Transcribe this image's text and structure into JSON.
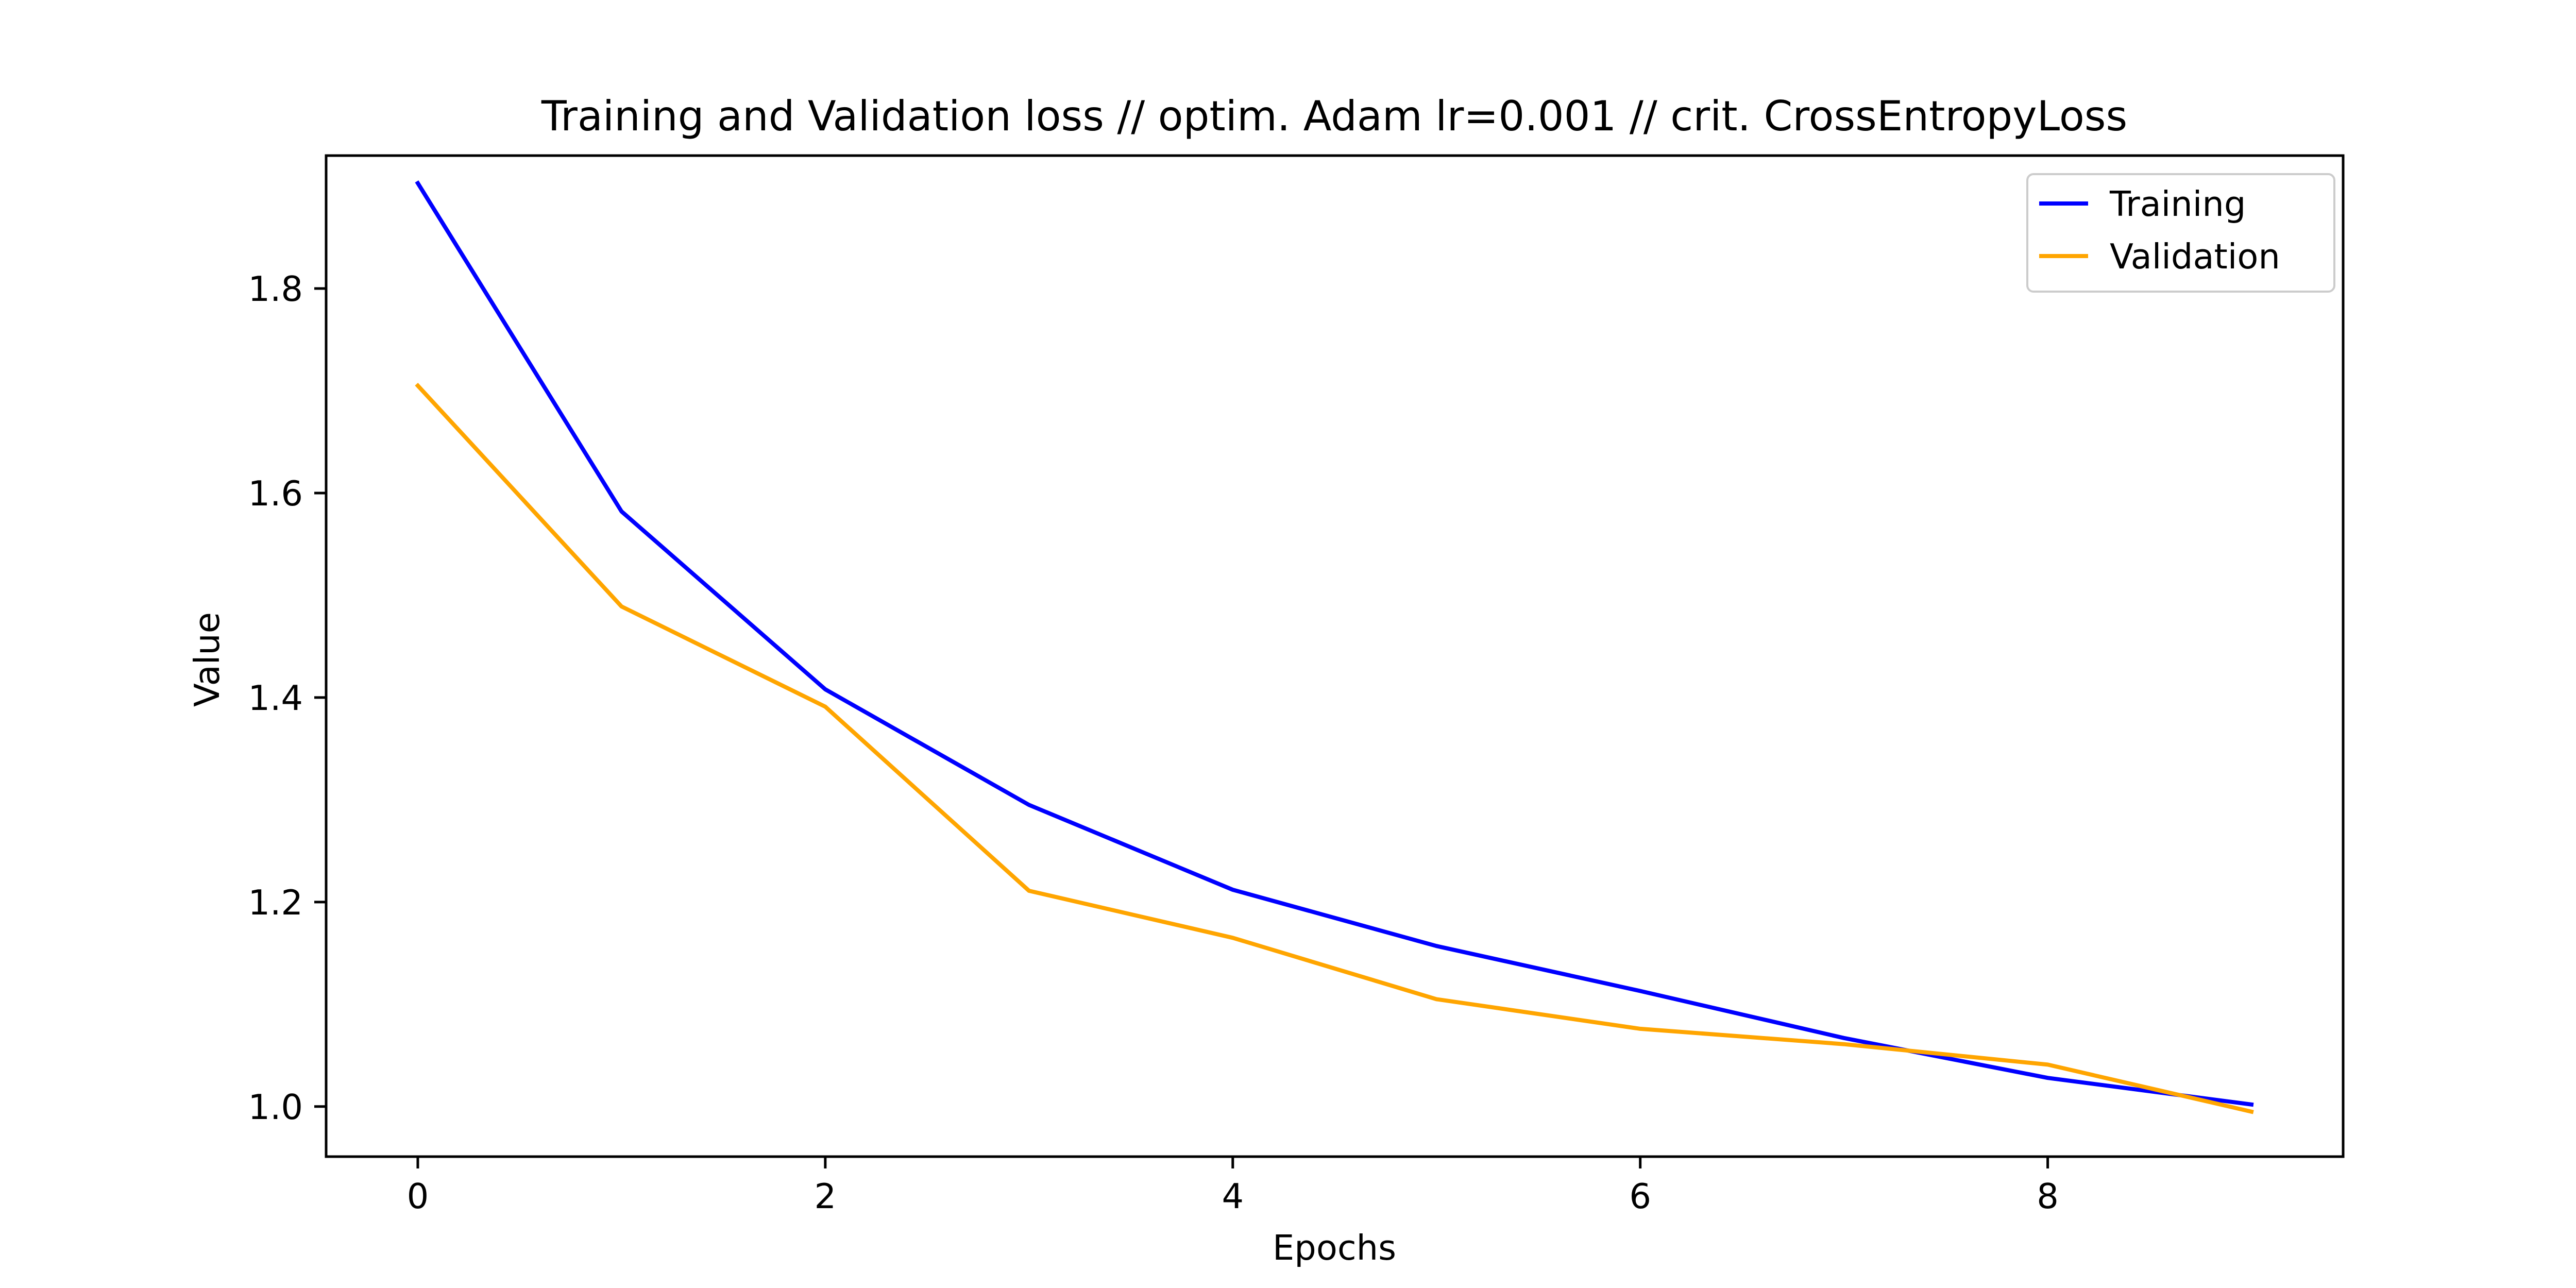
{
  "chart_data": {
    "type": "line",
    "title": "Training and Validation loss // optim. Adam lr=0.001 // crit. CrossEntropyLoss",
    "xlabel": "Epochs",
    "ylabel": "Value",
    "x": [
      0,
      1,
      2,
      3,
      4,
      5,
      6,
      7,
      8,
      9
    ],
    "xlim": [
      -0.45,
      9.45
    ],
    "ylim": [
      0.951,
      1.93
    ],
    "xticks": [
      0,
      2,
      4,
      6,
      8
    ],
    "yticks": [
      1.0,
      1.2,
      1.4,
      1.6,
      1.8
    ],
    "grid": false,
    "legend_position": "top-right",
    "series": [
      {
        "name": "Training",
        "color": "#0000ff",
        "values": [
          1.903,
          1.582,
          1.408,
          1.295,
          1.212,
          1.157,
          1.113,
          1.067,
          1.028,
          1.002
        ]
      },
      {
        "name": "Validation",
        "color": "#ffa500",
        "values": [
          1.705,
          1.489,
          1.391,
          1.211,
          1.165,
          1.105,
          1.076,
          1.061,
          1.041,
          0.995
        ]
      }
    ]
  }
}
